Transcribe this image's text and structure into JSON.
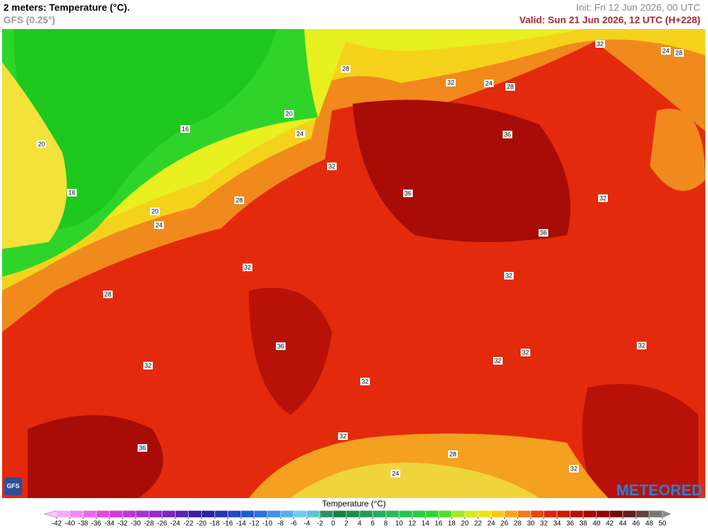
{
  "header": {
    "title": "2 meters: Temperature (°C).",
    "model": "GFS (0.25°)",
    "init": "Init: Fri 12 Jun 2026, 00 UTC",
    "valid": "Valid: Sun 21 Jun 2026, 12 UTC (H+228)"
  },
  "map": {
    "contour_labels": [
      "28",
      "32",
      "24",
      "28",
      "32",
      "24",
      "28",
      "20",
      "16",
      "20",
      "24",
      "36",
      "32",
      "16",
      "36",
      "32",
      "28",
      "20",
      "24",
      "36",
      "32",
      "32",
      "28",
      "36",
      "32",
      "32",
      "32",
      "32",
      "32",
      "32",
      "36",
      "28",
      "24",
      "32"
    ]
  },
  "legend": {
    "title": "Temperature (°C)",
    "ticks": [
      -42,
      -40,
      -38,
      -36,
      -34,
      -32,
      -30,
      -28,
      -26,
      -24,
      -22,
      -20,
      -18,
      -16,
      -14,
      -12,
      -10,
      -8,
      -6,
      -4,
      -2,
      0,
      2,
      4,
      6,
      8,
      10,
      12,
      14,
      16,
      18,
      20,
      22,
      24,
      26,
      28,
      30,
      32,
      34,
      36,
      38,
      40,
      42,
      44,
      46,
      48,
      50
    ]
  },
  "logos": {
    "gfs": "GFS",
    "brand": "METEORED"
  }
}
